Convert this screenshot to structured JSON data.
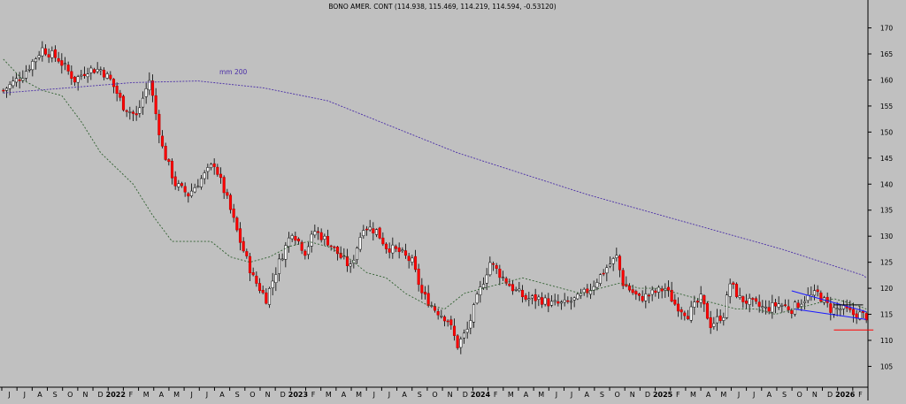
{
  "chart_data": {
    "type": "candlestick",
    "title": "BONO AMER. CONT (114.938, 115.469, 114.219, 114.594, -0.53120)",
    "ylim": [
      101,
      174
    ],
    "y_ticks": [
      105,
      110,
      115,
      120,
      125,
      130,
      135,
      140,
      145,
      150,
      155,
      160,
      165,
      170
    ],
    "x_tick_labels": [
      "J",
      "J",
      "A",
      "S",
      "O",
      "N",
      "D",
      "2022",
      "F",
      "M",
      "A",
      "M",
      "J",
      "J",
      "A",
      "S",
      "O",
      "N",
      "D",
      "2023",
      "F",
      "M",
      "A",
      "M",
      "J",
      "J",
      "A",
      "S",
      "O",
      "N",
      "D",
      "2024",
      "F",
      "M",
      "A",
      "M",
      "J",
      "J",
      "A",
      "S",
      "O",
      "N",
      "D",
      "2025",
      "F",
      "M",
      "A",
      "M",
      "J",
      "J",
      "A",
      "S",
      "O",
      "N",
      "D",
      "2026",
      "F"
    ],
    "grid": false,
    "close_path": [
      [
        0,
        158
      ],
      [
        6,
        161
      ],
      [
        12,
        166
      ],
      [
        17,
        164
      ],
      [
        22,
        160
      ],
      [
        26,
        162
      ],
      [
        30,
        162
      ],
      [
        33,
        160
      ],
      [
        37,
        155
      ],
      [
        41,
        153
      ],
      [
        45,
        160
      ],
      [
        49,
        147
      ],
      [
        53,
        140
      ],
      [
        57,
        138
      ],
      [
        61,
        141
      ],
      [
        65,
        144
      ],
      [
        69,
        137
      ],
      [
        73,
        129
      ],
      [
        77,
        122
      ],
      [
        81,
        118
      ],
      [
        85,
        125
      ],
      [
        89,
        131
      ],
      [
        93,
        127
      ],
      [
        96,
        131
      ],
      [
        100,
        129
      ],
      [
        104,
        126
      ],
      [
        107,
        124
      ],
      [
        111,
        132
      ],
      [
        115,
        131
      ],
      [
        118,
        128
      ],
      [
        122,
        127
      ],
      [
        126,
        125
      ],
      [
        129,
        119
      ],
      [
        133,
        116
      ],
      [
        137,
        114
      ],
      [
        140,
        109
      ],
      [
        143,
        112
      ],
      [
        146,
        118
      ],
      [
        150,
        125
      ],
      [
        154,
        122
      ],
      [
        157,
        120
      ],
      [
        161,
        118
      ],
      [
        165,
        118
      ],
      [
        169,
        117
      ],
      [
        173,
        117
      ],
      [
        177,
        118
      ],
      [
        181,
        120
      ],
      [
        186,
        124
      ],
      [
        189,
        126
      ],
      [
        191,
        121
      ],
      [
        196,
        118
      ],
      [
        200,
        119
      ],
      [
        204,
        120
      ],
      [
        207,
        117
      ],
      [
        211,
        115
      ],
      [
        215,
        118
      ],
      [
        218,
        113
      ],
      [
        222,
        115
      ],
      [
        224,
        121
      ],
      [
        227,
        118
      ],
      [
        231,
        117
      ],
      [
        235,
        116
      ],
      [
        239,
        117
      ],
      [
        243,
        116
      ],
      [
        247,
        118
      ],
      [
        251,
        119
      ],
      [
        255,
        116
      ],
      [
        259,
        116
      ],
      [
        262,
        115
      ],
      [
        264,
        115
      ],
      [
        266,
        114.6
      ]
    ],
    "series": [
      {
        "name": "",
        "points": [
          [
            0,
            164
          ],
          [
            6,
            160
          ],
          [
            12,
            158
          ],
          [
            18,
            157
          ],
          [
            24,
            152
          ],
          [
            30,
            146
          ],
          [
            35,
            143
          ],
          [
            40,
            140
          ],
          [
            46,
            134
          ],
          [
            52,
            129
          ],
          [
            58,
            129
          ],
          [
            64,
            129
          ],
          [
            70,
            126
          ],
          [
            76,
            125
          ],
          [
            82,
            126
          ],
          [
            88,
            128
          ],
          [
            94,
            129
          ],
          [
            100,
            128
          ],
          [
            106,
            126
          ],
          [
            112,
            123
          ],
          [
            118,
            122
          ],
          [
            124,
            119
          ],
          [
            130,
            117
          ],
          [
            136,
            116
          ],
          [
            142,
            119
          ],
          [
            148,
            120
          ],
          [
            154,
            121
          ],
          [
            160,
            122
          ],
          [
            166,
            121
          ],
          [
            172,
            120
          ],
          [
            178,
            119
          ],
          [
            184,
            120
          ],
          [
            190,
            121
          ],
          [
            196,
            120
          ],
          [
            202,
            120
          ],
          [
            208,
            119
          ],
          [
            214,
            118
          ],
          [
            220,
            117
          ],
          [
            226,
            116
          ],
          [
            232,
            116
          ],
          [
            238,
            115
          ],
          [
            244,
            116
          ],
          [
            250,
            117
          ],
          [
            256,
            118
          ],
          [
            262,
            117
          ],
          [
            266,
            116
          ]
        ]
      },
      {
        "name": "mm 200",
        "points": [
          [
            0,
            157.5
          ],
          [
            20,
            158.5
          ],
          [
            40,
            159.5
          ],
          [
            60,
            159.8
          ],
          [
            80,
            158.5
          ],
          [
            100,
            156
          ],
          [
            120,
            151
          ],
          [
            140,
            146
          ],
          [
            160,
            142
          ],
          [
            180,
            138
          ],
          [
            200,
            134.5
          ],
          [
            220,
            131
          ],
          [
            240,
            127.5
          ],
          [
            260,
            123.5
          ],
          [
            265,
            122.5
          ],
          [
            266,
            122
          ]
        ]
      }
    ],
    "annotations": [
      "mm 200"
    ]
  }
}
